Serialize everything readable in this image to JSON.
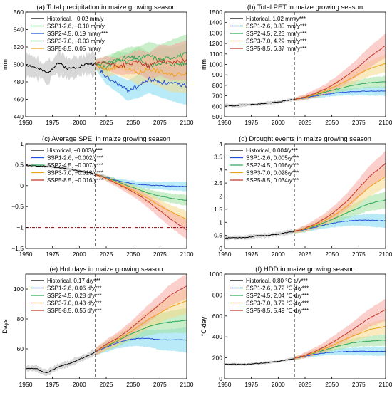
{
  "chart_data": [
    {
      "type": "line",
      "title": "(a) Total precipitation in maize growing season",
      "ylabel": "mm",
      "xlim": [
        1950,
        2100
      ],
      "ylim": [
        440,
        560
      ],
      "xticks": [
        1950,
        1975,
        2000,
        2025,
        2050,
        2075,
        2100
      ],
      "yticks": [
        440,
        460,
        480,
        500,
        520,
        540,
        560
      ],
      "divider_x": 2015,
      "reference_y": null,
      "historical": {
        "x": [
          1950,
          1960,
          1970,
          1980,
          1990,
          2000,
          2010,
          2015
        ],
        "y": [
          500,
          496,
          490,
          502,
          495,
          498,
          501,
          500
        ],
        "band": 12
      },
      "ssp": [
        {
          "x": [
            2015,
            2025,
            2035,
            2045,
            2055,
            2065,
            2075,
            2085,
            2100
          ],
          "y": [
            500,
            496,
            505,
            502,
            507,
            498,
            502,
            500,
            501
          ],
          "band": [
            5,
            22
          ]
        },
        {
          "x": [
            2015,
            2025,
            2035,
            2045,
            2055,
            2065,
            2075,
            2085,
            2100
          ],
          "y": [
            500,
            485,
            478,
            470,
            475,
            483,
            480,
            478,
            476
          ],
          "band": [
            5,
            22
          ]
        },
        {
          "x": [
            2015,
            2025,
            2035,
            2045,
            2055,
            2065,
            2075,
            2085,
            2100
          ],
          "y": [
            500,
            502,
            505,
            508,
            507,
            510,
            505,
            508,
            512
          ],
          "band": [
            5,
            22
          ]
        },
        {
          "x": [
            2015,
            2025,
            2035,
            2045,
            2055,
            2065,
            2075,
            2085,
            2100
          ],
          "y": [
            500,
            493,
            498,
            495,
            490,
            495,
            492,
            488,
            490
          ],
          "band": [
            5,
            22
          ]
        },
        {
          "x": [
            2015,
            2025,
            2035,
            2045,
            2055,
            2065,
            2075,
            2085,
            2100
          ],
          "y": [
            500,
            502,
            498,
            500,
            503,
            498,
            505,
            502,
            505
          ],
          "band": [
            5,
            22
          ]
        }
      ],
      "legend": [
        "Historical, −0.02 mm/y",
        "SSP1-2.6, −0.10 mm/y",
        "SSP2-4.5, 0.19 mm/y***",
        "SSP3-7.0, −0.03 mm/y",
        "SSP5-8.5, 0.05 mm/y"
      ]
    },
    {
      "type": "line",
      "title": "(b) Total PET in maize growing season",
      "ylabel": "mm",
      "xlim": [
        1950,
        2100
      ],
      "ylim": [
        500,
        1500
      ],
      "xticks": [
        1950,
        1975,
        2000,
        2025,
        2050,
        2075,
        2100
      ],
      "yticks": [
        500,
        600,
        700,
        800,
        900,
        1000,
        1100,
        1200,
        1300,
        1400,
        1500
      ],
      "divider_x": 2015,
      "reference_y": null,
      "historical": {
        "x": [
          1950,
          1960,
          1970,
          1980,
          1990,
          2000,
          2010,
          2015
        ],
        "y": [
          610,
          605,
          615,
          620,
          630,
          640,
          660,
          665
        ],
        "band": 15
      },
      "ssp": [
        {
          "x": [
            2015,
            2025,
            2035,
            2045,
            2055,
            2065,
            2075,
            2085,
            2100
          ],
          "y": [
            665,
            680,
            700,
            715,
            730,
            738,
            742,
            745,
            745
          ],
          "band": [
            10,
            40
          ]
        },
        {
          "x": [
            2015,
            2025,
            2035,
            2045,
            2055,
            2065,
            2075,
            2085,
            2100
          ],
          "y": [
            665,
            685,
            710,
            740,
            765,
            790,
            810,
            825,
            835
          ],
          "band": [
            10,
            50
          ]
        },
        {
          "x": [
            2015,
            2025,
            2035,
            2045,
            2055,
            2065,
            2075,
            2085,
            2100
          ],
          "y": [
            665,
            685,
            715,
            750,
            800,
            850,
            910,
            960,
            1010
          ],
          "band": [
            10,
            80
          ]
        },
        {
          "x": [
            2015,
            2025,
            2035,
            2045,
            2055,
            2065,
            2075,
            2085,
            2100
          ],
          "y": [
            665,
            690,
            725,
            770,
            830,
            900,
            980,
            1070,
            1180
          ],
          "band": [
            10,
            110
          ]
        }
      ],
      "legend": [
        "Historical, 1.02 mm/y***",
        "SSP1-2.6, 0.85 mm/y***",
        "SSP2-4.5, 2.23 mm/y***",
        "SSP3-7.0, 4.29 mm/y***",
        "SSP5-8.5, 6.37 mm/y***"
      ]
    },
    {
      "type": "line",
      "title": "(c) Average SPEI in maize growing season",
      "ylabel": "",
      "xlim": [
        1950,
        2100
      ],
      "ylim": [
        -1.5,
        1
      ],
      "xticks": [
        1950,
        1975,
        2000,
        2025,
        2050,
        2075,
        2100
      ],
      "yticks": [
        -1.5,
        -1,
        -0.5,
        0,
        0.5,
        1
      ],
      "divider_x": 2015,
      "reference_y": -1,
      "historical": {
        "x": [
          1950,
          1960,
          1970,
          1980,
          1990,
          2000,
          2010,
          2015
        ],
        "y": [
          0.48,
          0.47,
          0.46,
          0.43,
          0.4,
          0.35,
          0.3,
          0.27
        ],
        "band": 0.03
      },
      "ssp": [
        {
          "x": [
            2015,
            2025,
            2035,
            2045,
            2055,
            2065,
            2075,
            2085,
            2100
          ],
          "y": [
            0.27,
            0.2,
            0.12,
            0.07,
            0.03,
            0.01,
            0.0,
            -0.01,
            -0.02
          ],
          "band": [
            0.02,
            0.1
          ]
        },
        {
          "x": [
            2015,
            2025,
            2035,
            2045,
            2055,
            2065,
            2075,
            2085,
            2100
          ],
          "y": [
            0.27,
            0.19,
            0.1,
            0.0,
            -0.09,
            -0.18,
            -0.25,
            -0.3,
            -0.35
          ],
          "band": [
            0.02,
            0.12
          ]
        },
        {
          "x": [
            2015,
            2025,
            2035,
            2045,
            2055,
            2065,
            2075,
            2085,
            2100
          ],
          "y": [
            0.27,
            0.18,
            0.07,
            -0.05,
            -0.18,
            -0.32,
            -0.48,
            -0.62,
            -0.8
          ],
          "band": [
            0.02,
            0.18
          ]
        },
        {
          "x": [
            2015,
            2025,
            2035,
            2045,
            2055,
            2065,
            2075,
            2085,
            2100
          ],
          "y": [
            0.27,
            0.17,
            0.05,
            -0.08,
            -0.22,
            -0.4,
            -0.6,
            -0.8,
            -1.05
          ],
          "band": [
            0.02,
            0.22
          ]
        }
      ],
      "legend": [
        "Historical, −0.003/y***",
        "SSP1-2.6, −0.002/y***",
        "SSP2-4.5, −0.007/y***",
        "SSP3-7.0, −0.013/y***",
        "SSP5-8.5, −0.016/y***"
      ]
    },
    {
      "type": "line",
      "title": "(d) Drought events in maize growing season",
      "ylabel": "",
      "xlim": [
        1950,
        2100
      ],
      "ylim": [
        0,
        4
      ],
      "xticks": [
        1950,
        1975,
        2000,
        2025,
        2050,
        2075,
        2100
      ],
      "yticks": [
        0,
        0.5,
        1,
        1.5,
        2,
        2.5,
        3,
        3.5,
        4
      ],
      "divider_x": 2015,
      "reference_y": null,
      "historical": {
        "x": [
          1950,
          1960,
          1970,
          1980,
          1990,
          2000,
          2010,
          2015
        ],
        "y": [
          0.4,
          0.42,
          0.42,
          0.48,
          0.5,
          0.55,
          0.62,
          0.65
        ],
        "band": 0.08
      },
      "ssp": [
        {
          "x": [
            2015,
            2025,
            2035,
            2045,
            2055,
            2065,
            2075,
            2085,
            2100
          ],
          "y": [
            0.65,
            0.72,
            0.82,
            0.92,
            1.0,
            1.05,
            1.08,
            1.08,
            1.05
          ],
          "band": [
            0.05,
            0.25
          ]
        },
        {
          "x": [
            2015,
            2025,
            2035,
            2045,
            2055,
            2065,
            2075,
            2085,
            2100
          ],
          "y": [
            0.65,
            0.74,
            0.87,
            1.02,
            1.2,
            1.38,
            1.55,
            1.72,
            1.85
          ],
          "band": [
            0.05,
            0.3
          ]
        },
        {
          "x": [
            2015,
            2025,
            2035,
            2045,
            2055,
            2065,
            2075,
            2085,
            2100
          ],
          "y": [
            0.65,
            0.75,
            0.9,
            1.1,
            1.35,
            1.65,
            2.0,
            2.35,
            2.75
          ],
          "band": [
            0.05,
            0.4
          ]
        },
        {
          "x": [
            2015,
            2025,
            2035,
            2045,
            2055,
            2065,
            2075,
            2085,
            2100
          ],
          "y": [
            0.65,
            0.77,
            0.95,
            1.18,
            1.48,
            1.85,
            2.3,
            2.75,
            3.25
          ],
          "band": [
            0.05,
            0.45
          ]
        }
      ],
      "legend": [
        "Historical, 0.004/y***",
        "SSP1-2.6, 0.005/y***",
        "SSP2-4.5, 0.016/y***",
        "SSP3-7.0, 0.028/y***",
        "SSP5-8.5, 0.034/y***"
      ]
    },
    {
      "type": "line",
      "title": "(e) Hot days in maize growing season",
      "ylabel": "Days",
      "xlim": [
        1950,
        2100
      ],
      "ylim": [
        40,
        110
      ],
      "xticks": [
        1950,
        1975,
        2000,
        2025,
        2050,
        2075,
        2100
      ],
      "yticks": [
        60,
        80,
        100
      ],
      "divider_x": 2015,
      "reference_y": null,
      "historical": {
        "x": [
          1950,
          1960,
          1965,
          1970,
          1980,
          1990,
          2000,
          2010,
          2015
        ],
        "y": [
          47,
          47,
          45,
          44,
          48,
          50,
          53,
          56,
          58
        ],
        "band": 2
      },
      "ssp": [
        {
          "x": [
            2015,
            2025,
            2035,
            2045,
            2055,
            2065,
            2075,
            2085,
            2100
          ],
          "y": [
            58,
            61,
            64,
            66,
            67,
            67,
            66,
            66,
            66
          ],
          "band": [
            2,
            8
          ]
        },
        {
          "x": [
            2015,
            2025,
            2035,
            2045,
            2055,
            2065,
            2075,
            2085,
            2100
          ],
          "y": [
            58,
            62,
            65,
            69,
            72,
            75,
            77,
            78,
            79
          ],
          "band": [
            2,
            8
          ]
        },
        {
          "x": [
            2015,
            2025,
            2035,
            2045,
            2055,
            2065,
            2075,
            2085,
            2100
          ],
          "y": [
            58,
            62,
            66,
            70,
            75,
            80,
            84,
            88,
            92
          ],
          "band": [
            2,
            8
          ]
        },
        {
          "x": [
            2015,
            2025,
            2035,
            2045,
            2055,
            2065,
            2075,
            2085,
            2100
          ],
          "y": [
            58,
            63,
            67,
            72,
            78,
            84,
            90,
            96,
            102
          ],
          "band": [
            2,
            8
          ]
        }
      ],
      "legend": [
        "Historical, 0.17 d/y***",
        "SSP1-2.6, 0.06 d/y***",
        "SSP2-4.5, 0.28 d/y***",
        "SSP3-7.0, 0.43 d/y***",
        "SSP5-8.5, 0.56 d/y***"
      ]
    },
    {
      "type": "line",
      "title": "(f) HDD in maize growing season",
      "ylabel": "°C·day",
      "xlim": [
        1950,
        2100
      ],
      "ylim": [
        0,
        1000
      ],
      "xticks": [
        1950,
        1975,
        2000,
        2025,
        2050,
        2075,
        2100
      ],
      "yticks": [
        0,
        200,
        400,
        600,
        800,
        1000
      ],
      "divider_x": 2015,
      "reference_y": null,
      "historical": {
        "x": [
          1950,
          1960,
          1970,
          1980,
          1990,
          2000,
          2010,
          2015
        ],
        "y": [
          140,
          138,
          137,
          145,
          155,
          165,
          185,
          195
        ],
        "band": 12
      },
      "ssp": [
        {
          "x": [
            2015,
            2025,
            2035,
            2045,
            2055,
            2065,
            2075,
            2085,
            2100
          ],
          "y": [
            195,
            215,
            235,
            250,
            258,
            260,
            262,
            262,
            262
          ],
          "band": [
            10,
            40
          ]
        },
        {
          "x": [
            2015,
            2025,
            2035,
            2045,
            2055,
            2065,
            2075,
            2085,
            2100
          ],
          "y": [
            195,
            220,
            250,
            280,
            310,
            335,
            350,
            360,
            370
          ],
          "band": [
            10,
            50
          ]
        },
        {
          "x": [
            2015,
            2025,
            2035,
            2045,
            2055,
            2065,
            2075,
            2085,
            2100
          ],
          "y": [
            195,
            220,
            255,
            295,
            340,
            390,
            430,
            470,
            500
          ],
          "band": [
            10,
            70
          ]
        },
        {
          "x": [
            2015,
            2025,
            2035,
            2045,
            2055,
            2065,
            2075,
            2085,
            2100
          ],
          "y": [
            195,
            225,
            265,
            315,
            375,
            440,
            510,
            580,
            660
          ],
          "band": [
            10,
            100
          ]
        }
      ],
      "legend": [
        "Historical, 0.80 °C·d/y***",
        "SSP1-2.6, 0.72 °C·d/y***",
        "SSP2-4.5, 2.04 °C·d/y***",
        "SSP3-7.0, 3.79 °C·d/y***",
        "SSP5-8.5, 5.49 °C·d/y***"
      ]
    }
  ],
  "style": {
    "historical_color": "#000000",
    "historical_band": "#c8c8c8",
    "ssp_colors": [
      "#1f4fd8",
      "#2ea85a",
      "#f0a21e",
      "#c0392b"
    ],
    "ssp_band_colors": [
      "#7fd8f0",
      "#9fe09f",
      "#f6d98a",
      "#f7a8a0"
    ],
    "panel_a_ssp_colors": [
      "#2ea85a",
      "#1f4fd8",
      "#2ea85a",
      "#f0a21e",
      "#c0392b"
    ],
    "panel_a_band_colors": [
      "#9fe09f",
      "#7fd8f0",
      "#9fe09f",
      "#f6d98a",
      "#f7a8a0"
    ],
    "reference_color": "#8b0000"
  }
}
